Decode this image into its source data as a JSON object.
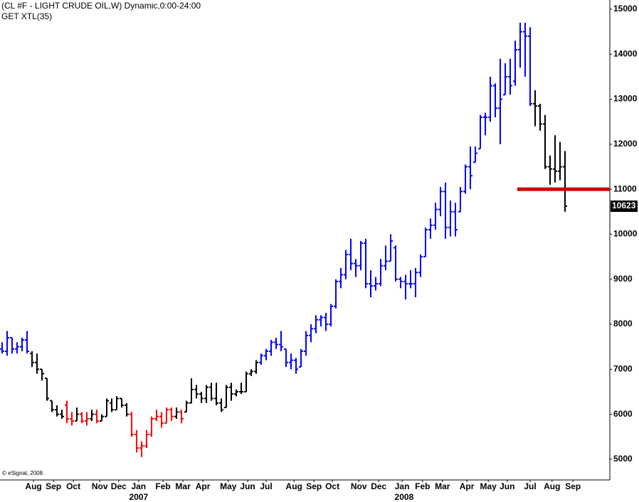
{
  "chart_data": {
    "type": "ohlc",
    "title": "(CL #F - LIGHT CRUDE OIL,W) Dynamic,0:00-24:00",
    "subtitle": "GET XTL(35)",
    "copyright": "© eSignal, 2008",
    "xlim": [
      0,
      122
    ],
    "ylim": [
      4540,
      15205
    ],
    "yticks": [
      5000,
      6000,
      7000,
      8000,
      9000,
      10000,
      11000,
      12000,
      13000,
      14000,
      15000
    ],
    "xticks": [
      {
        "value": 6.3,
        "label": "Aug"
      },
      {
        "value": 10.3,
        "label": "Sep"
      },
      {
        "value": 14.3,
        "label": "Oct"
      },
      {
        "value": 19.6,
        "label": "Nov"
      },
      {
        "value": 23.4,
        "label": "Dec"
      },
      {
        "value": 27.4,
        "label": "Jan"
      },
      {
        "value": 32.3,
        "label": "Feb"
      },
      {
        "value": 36.3,
        "label": "Mar"
      },
      {
        "value": 40.3,
        "label": "Apr"
      },
      {
        "value": 45.4,
        "label": "May"
      },
      {
        "value": 49.3,
        "label": "Jun"
      },
      {
        "value": 53.0,
        "label": "Jul"
      },
      {
        "value": 58.6,
        "label": "Aug"
      },
      {
        "value": 62.6,
        "label": "Sep"
      },
      {
        "value": 66.3,
        "label": "Oct"
      },
      {
        "value": 71.6,
        "label": "Nov"
      },
      {
        "value": 75.6,
        "label": "Dec"
      },
      {
        "value": 80.3,
        "label": "Jan"
      },
      {
        "value": 84.4,
        "label": "Feb"
      },
      {
        "value": 88.4,
        "label": "Mar"
      },
      {
        "value": 93.3,
        "label": "Apr"
      },
      {
        "value": 97.6,
        "label": "May"
      },
      {
        "value": 101.4,
        "label": "Jun"
      },
      {
        "value": 106.0,
        "label": "Jul"
      },
      {
        "value": 110.4,
        "label": "Aug"
      },
      {
        "value": 114.6,
        "label": "Sep"
      }
    ],
    "year_ticks": [
      {
        "value": 27.4,
        "label": "2007"
      },
      {
        "value": 80.7,
        "label": "2008"
      }
    ],
    "hline": {
      "value": 11000,
      "x_start": 103.4,
      "color": "#cc0000"
    },
    "open": [
      7450,
      7400,
      7700,
      7450,
      7500,
      7650,
      7350,
      7150,
      7000,
      6800,
      6300,
      6100,
      6000,
      6200,
      5900,
      5850,
      6000,
      5850,
      5900,
      6000,
      5850,
      5950,
      6250,
      6100,
      6350,
      6200,
      6000,
      5550,
      5250,
      5300,
      5550,
      5900,
      5950,
      5800,
      6100,
      5950,
      6050,
      6050,
      6250,
      6550,
      6450,
      6350,
      6600,
      6350,
      6250,
      6150,
      6600,
      6450,
      6500,
      6500,
      6900,
      6950,
      7150,
      7300,
      7400,
      7600,
      7550,
      7450,
      7150,
      7200,
      7050,
      7400,
      7750,
      7900,
      8100,
      8150,
      8000,
      8400,
      8950,
      9100,
      9550,
      9350,
      9300,
      9800,
      8900,
      8850,
      8900,
      9300,
      9400,
      9700,
      9000,
      8950,
      8900,
      8900,
      9150,
      9500,
      10100,
      10200,
      10550,
      10950,
      10150,
      10500,
      10500,
      10950,
      11500,
      11600,
      11900,
      12600,
      12600,
      13300,
      12800,
      13100,
      13500,
      13400,
      14100,
      14500,
      14400,
      12900,
      12850,
      12450,
      11500,
      11450,
      11400,
      11500
    ],
    "high": [
      7600,
      7850,
      7700,
      7600,
      7700,
      7850,
      7400,
      7350,
      7000,
      6800,
      6300,
      6200,
      6100,
      6300,
      6050,
      6150,
      6050,
      6050,
      6100,
      6100,
      6000,
      6350,
      6350,
      6400,
      6350,
      6250,
      6050,
      5650,
      5400,
      5650,
      5950,
      6100,
      6050,
      6150,
      6150,
      6150,
      6100,
      6300,
      6800,
      6650,
      6500,
      6650,
      6700,
      6700,
      6350,
      6650,
      6700,
      6550,
      6700,
      6950,
      7000,
      7200,
      7350,
      7450,
      7650,
      7700,
      7850,
      7450,
      7350,
      7250,
      7450,
      7850,
      8000,
      8200,
      8200,
      8250,
      8450,
      9000,
      9250,
      9650,
      9900,
      9450,
      9850,
      9900,
      9200,
      9050,
      9450,
      9750,
      10000,
      9750,
      9050,
      9100,
      9200,
      9250,
      9550,
      10150,
      10350,
      10700,
      11050,
      11150,
      10750,
      10700,
      11050,
      11550,
      11950,
      11950,
      12650,
      12700,
      13500,
      13350,
      13900,
      13800,
      13900,
      14300,
      14700,
      14700,
      14600,
      13200,
      12900,
      12650,
      11750,
      12200,
      12050,
      11850
    ],
    "low": [
      7350,
      7300,
      7350,
      7350,
      7400,
      7350,
      7050,
      6900,
      6750,
      6300,
      6050,
      5950,
      5900,
      5800,
      5750,
      5850,
      5800,
      5750,
      5850,
      5800,
      5850,
      5950,
      6050,
      6100,
      6150,
      5950,
      5500,
      5150,
      5050,
      5250,
      5500,
      5850,
      5700,
      5800,
      5850,
      5900,
      5800,
      6050,
      6250,
      6350,
      6250,
      6250,
      6300,
      6200,
      6050,
      6150,
      6300,
      6400,
      6450,
      6500,
      6850,
      6900,
      7100,
      7200,
      7300,
      7450,
      7400,
      7050,
      7000,
      6900,
      7050,
      7300,
      7600,
      7800,
      7950,
      7850,
      7950,
      8350,
      8800,
      9000,
      9200,
      9050,
      9200,
      8800,
      8600,
      8750,
      8850,
      9200,
      9400,
      8950,
      8800,
      8550,
      8800,
      8600,
      9050,
      9500,
      9900,
      10100,
      10400,
      9900,
      9950,
      9950,
      10500,
      10900,
      11000,
      11600,
      11900,
      12200,
      12500,
      12600,
      12000,
      13100,
      13100,
      13300,
      13700,
      13500,
      12850,
      12400,
      12300,
      11450,
      11100,
      11150,
      11200,
      10500
    ],
    "close": [
      7400,
      7700,
      7450,
      7500,
      7650,
      7400,
      7150,
      7000,
      6900,
      6350,
      6100,
      6000,
      5950,
      5900,
      5850,
      6000,
      5850,
      5900,
      6000,
      5850,
      5950,
      6300,
      6100,
      6350,
      6200,
      6000,
      5550,
      5250,
      5300,
      5550,
      5900,
      5950,
      5800,
      6100,
      5950,
      6050,
      5900,
      6250,
      6550,
      6450,
      6350,
      6600,
      6350,
      6250,
      6100,
      6600,
      6450,
      6500,
      6500,
      6900,
      6950,
      7150,
      7300,
      7400,
      7600,
      7550,
      7500,
      7150,
      7200,
      7000,
      7400,
      7750,
      7900,
      8100,
      8150,
      8000,
      8400,
      8950,
      9100,
      9550,
      9350,
      9300,
      9800,
      8900,
      8850,
      8900,
      9300,
      9400,
      9850,
      9000,
      8950,
      8900,
      8900,
      9150,
      9500,
      10100,
      10200,
      10550,
      10950,
      10150,
      10500,
      10100,
      10950,
      11500,
      11300,
      11800,
      12600,
      12600,
      13300,
      12800,
      13000,
      13500,
      13300,
      14100,
      14500,
      14400,
      12900,
      12850,
      12450,
      11500,
      11450,
      11400,
      11500,
      10623
    ],
    "colors": [
      "blue",
      "blue",
      "blue",
      "blue",
      "blue",
      "blue",
      "black",
      "black",
      "black",
      "black",
      "black",
      "black",
      "black",
      "red",
      "red",
      "black",
      "red",
      "red",
      "black",
      "red",
      "black",
      "black",
      "black",
      "black",
      "black",
      "black",
      "red",
      "red",
      "red",
      "red",
      "red",
      "red",
      "red",
      "red",
      "red",
      "black",
      "red",
      "black",
      "black",
      "black",
      "black",
      "black",
      "black",
      "black",
      "black",
      "black",
      "black",
      "black",
      "black",
      "black",
      "black",
      "black",
      "blue",
      "blue",
      "blue",
      "blue",
      "blue",
      "blue",
      "blue",
      "blue",
      "blue",
      "blue",
      "blue",
      "blue",
      "blue",
      "blue",
      "blue",
      "blue",
      "blue",
      "blue",
      "blue",
      "blue",
      "blue",
      "blue",
      "blue",
      "blue",
      "blue",
      "blue",
      "blue",
      "blue",
      "blue",
      "blue",
      "blue",
      "blue",
      "blue",
      "blue",
      "blue",
      "blue",
      "blue",
      "blue",
      "blue",
      "blue",
      "blue",
      "blue",
      "blue",
      "blue",
      "blue",
      "blue",
      "blue",
      "blue",
      "blue",
      "blue",
      "blue",
      "blue",
      "blue",
      "blue",
      "blue",
      "black",
      "black",
      "black",
      "black",
      "black",
      "black",
      "black"
    ]
  }
}
